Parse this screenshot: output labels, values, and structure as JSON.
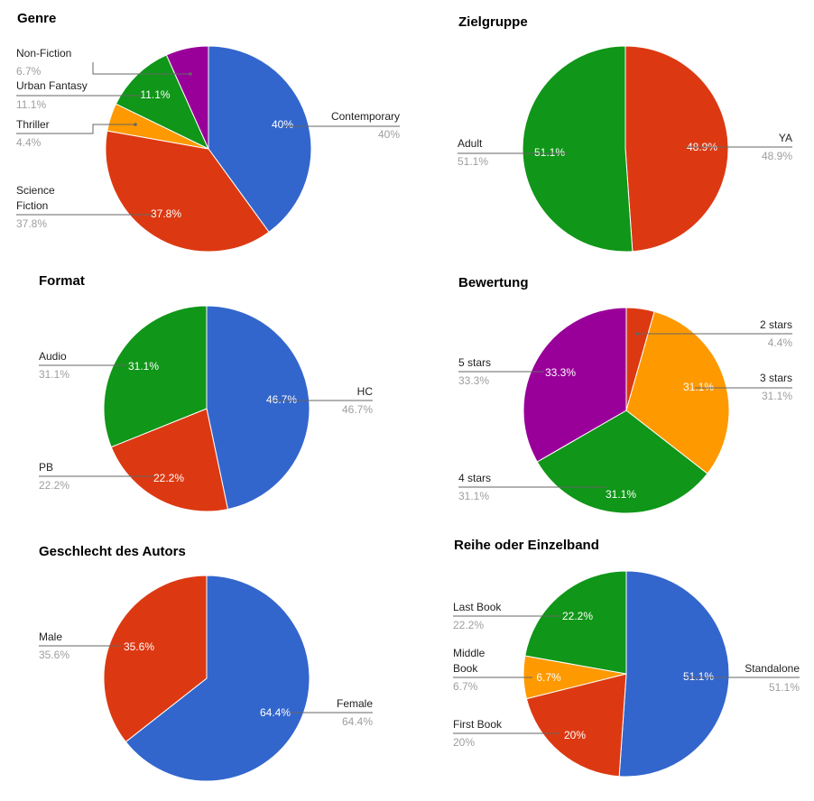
{
  "colors": {
    "blue": "#3366cc",
    "red": "#dc3912",
    "orange": "#ff9900",
    "green": "#109618",
    "purple": "#990099"
  },
  "chart_data": [
    {
      "type": "pie",
      "title": "Genre",
      "slices": [
        {
          "label": "Contemporary",
          "value": 40,
          "pct": "40%",
          "color": "#3366cc"
        },
        {
          "label": "Science Fiction",
          "value": 37.8,
          "pct": "37.8%",
          "color": "#dc3912"
        },
        {
          "label": "Thriller",
          "value": 4.4,
          "pct": "4.4%",
          "color": "#ff9900"
        },
        {
          "label": "Urban Fantasy",
          "value": 11.1,
          "pct": "11.1%",
          "color": "#109618"
        },
        {
          "label": "Non-Fiction",
          "value": 6.7,
          "pct": "6.7%",
          "color": "#990099"
        }
      ]
    },
    {
      "type": "pie",
      "title": "Zielgruppe",
      "slices": [
        {
          "label": "YA",
          "value": 48.9,
          "pct": "48.9%",
          "color": "#dc3912"
        },
        {
          "label": "Adult",
          "value": 51.1,
          "pct": "51.1%",
          "color": "#109618"
        }
      ]
    },
    {
      "type": "pie",
      "title": "Format",
      "slices": [
        {
          "label": "HC",
          "value": 46.7,
          "pct": "46.7%",
          "color": "#3366cc"
        },
        {
          "label": "PB",
          "value": 22.2,
          "pct": "22.2%",
          "color": "#dc3912"
        },
        {
          "label": "Audio",
          "value": 31.1,
          "pct": "31.1%",
          "color": "#109618"
        }
      ]
    },
    {
      "type": "pie",
      "title": "Bewertung",
      "slices": [
        {
          "label": "2 stars",
          "value": 4.4,
          "pct": "4.4%",
          "color": "#dc3912"
        },
        {
          "label": "3 stars",
          "value": 31.1,
          "pct": "31.1%",
          "color": "#ff9900"
        },
        {
          "label": "4 stars",
          "value": 31.1,
          "pct": "31.1%",
          "color": "#109618"
        },
        {
          "label": "5 stars",
          "value": 33.3,
          "pct": "33.3%",
          "color": "#990099"
        }
      ]
    },
    {
      "type": "pie",
      "title": "Geschlecht des Autors",
      "slices": [
        {
          "label": "Female",
          "value": 64.4,
          "pct": "64.4%",
          "color": "#3366cc"
        },
        {
          "label": "Male",
          "value": 35.6,
          "pct": "35.6%",
          "color": "#dc3912"
        }
      ]
    },
    {
      "type": "pie",
      "title": "Reihe oder Einzelband",
      "slices": [
        {
          "label": "Standalone",
          "value": 51.1,
          "pct": "51.1%",
          "color": "#3366cc"
        },
        {
          "label": "First Book",
          "value": 20,
          "pct": "20%",
          "color": "#dc3912"
        },
        {
          "label": "Middle Book",
          "value": 6.7,
          "pct": "6.7%",
          "color": "#ff9900"
        },
        {
          "label": "Last Book",
          "value": 22.2,
          "pct": "22.2%",
          "color": "#109618"
        }
      ]
    }
  ]
}
